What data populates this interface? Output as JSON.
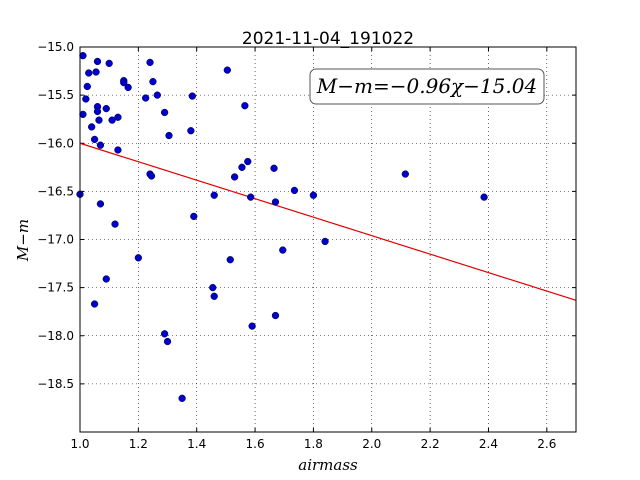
{
  "chart_data": {
    "type": "scatter",
    "title": "2021-11-04_191022",
    "xlabel": "airmass",
    "ylabel": "M−m",
    "xlim": [
      1.0,
      2.7
    ],
    "ylim": [
      -15.0,
      -19.0
    ],
    "y_inverted": true,
    "grid": true,
    "x_ticks": [
      "1.0",
      "1.2",
      "1.4",
      "1.6",
      "1.8",
      "2.0",
      "2.2",
      "2.4",
      "2.6"
    ],
    "y_ticks": [
      "−15.0",
      "−15.5",
      "−16.0",
      "−16.5",
      "−17.0",
      "−17.5",
      "−18.0",
      "−18.5"
    ],
    "x_tick_values": [
      1.0,
      1.2,
      1.4,
      1.6,
      1.8,
      2.0,
      2.2,
      2.4,
      2.6
    ],
    "y_tick_values": [
      -15.0,
      -15.5,
      -16.0,
      -16.5,
      -17.0,
      -17.5,
      -18.0,
      -18.5
    ],
    "annotation": "M−m=−0.96χ−15.04",
    "fit": {
      "slope": -0.96,
      "intercept": -15.04
    },
    "colors": {
      "points": "#0000cc",
      "fit_line": "#e00000"
    },
    "points": [
      {
        "x": 1.0,
        "y": -16.53
      },
      {
        "x": 1.01,
        "y": -15.7
      },
      {
        "x": 1.01,
        "y": -15.09
      },
      {
        "x": 1.02,
        "y": -15.54
      },
      {
        "x": 1.025,
        "y": -15.41
      },
      {
        "x": 1.03,
        "y": -15.27
      },
      {
        "x": 1.04,
        "y": -15.83
      },
      {
        "x": 1.05,
        "y": -15.96
      },
      {
        "x": 1.05,
        "y": -17.67
      },
      {
        "x": 1.055,
        "y": -15.26
      },
      {
        "x": 1.06,
        "y": -15.15
      },
      {
        "x": 1.06,
        "y": -15.62
      },
      {
        "x": 1.06,
        "y": -15.67
      },
      {
        "x": 1.065,
        "y": -15.76
      },
      {
        "x": 1.07,
        "y": -16.63
      },
      {
        "x": 1.07,
        "y": -16.02
      },
      {
        "x": 1.09,
        "y": -15.64
      },
      {
        "x": 1.09,
        "y": -17.41
      },
      {
        "x": 1.1,
        "y": -15.17
      },
      {
        "x": 1.11,
        "y": -15.76
      },
      {
        "x": 1.12,
        "y": -16.84
      },
      {
        "x": 1.13,
        "y": -15.73
      },
      {
        "x": 1.13,
        "y": -16.07
      },
      {
        "x": 1.15,
        "y": -15.35
      },
      {
        "x": 1.15,
        "y": -15.37
      },
      {
        "x": 1.165,
        "y": -15.42
      },
      {
        "x": 1.2,
        "y": -17.19
      },
      {
        "x": 1.225,
        "y": -15.53
      },
      {
        "x": 1.24,
        "y": -15.16
      },
      {
        "x": 1.24,
        "y": -16.32
      },
      {
        "x": 1.245,
        "y": -16.34
      },
      {
        "x": 1.25,
        "y": -15.36
      },
      {
        "x": 1.265,
        "y": -15.5
      },
      {
        "x": 1.29,
        "y": -15.68
      },
      {
        "x": 1.29,
        "y": -17.98
      },
      {
        "x": 1.3,
        "y": -18.06
      },
      {
        "x": 1.305,
        "y": -15.92
      },
      {
        "x": 1.35,
        "y": -18.65
      },
      {
        "x": 1.38,
        "y": -15.87
      },
      {
        "x": 1.385,
        "y": -15.51
      },
      {
        "x": 1.39,
        "y": -16.76
      },
      {
        "x": 1.455,
        "y": -17.5
      },
      {
        "x": 1.46,
        "y": -16.54
      },
      {
        "x": 1.46,
        "y": -17.59
      },
      {
        "x": 1.505,
        "y": -15.24
      },
      {
        "x": 1.515,
        "y": -17.21
      },
      {
        "x": 1.53,
        "y": -16.35
      },
      {
        "x": 1.555,
        "y": -16.25
      },
      {
        "x": 1.565,
        "y": -15.61
      },
      {
        "x": 1.575,
        "y": -16.19
      },
      {
        "x": 1.585,
        "y": -16.56
      },
      {
        "x": 1.59,
        "y": -17.9
      },
      {
        "x": 1.665,
        "y": -16.26
      },
      {
        "x": 1.67,
        "y": -16.61
      },
      {
        "x": 1.67,
        "y": -17.79
      },
      {
        "x": 1.695,
        "y": -17.11
      },
      {
        "x": 1.735,
        "y": -16.49
      },
      {
        "x": 1.8,
        "y": -16.54
      },
      {
        "x": 1.84,
        "y": -17.02
      },
      {
        "x": 2.115,
        "y": -16.32
      },
      {
        "x": 2.385,
        "y": -16.56
      }
    ]
  }
}
